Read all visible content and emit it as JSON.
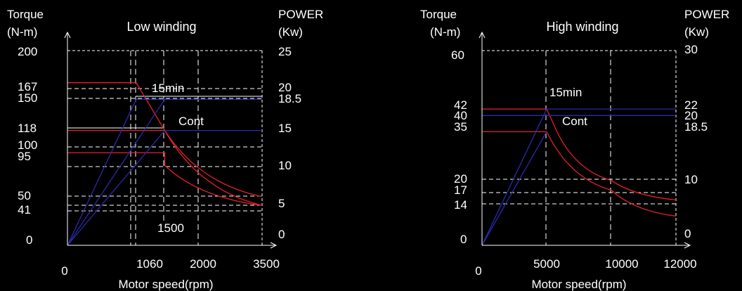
{
  "chart_data": [
    {
      "type": "line",
      "title": "Low winding",
      "xlabel": "Motor speed(rpm)",
      "ylabel_left": [
        "Torque",
        "(N-m)"
      ],
      "ylabel_right": [
        "POWER",
        "(Kw)"
      ],
      "x_tick_labels": [
        "0",
        "1060",
        "2000",
        "3500"
      ],
      "x_annotations": [
        "1500"
      ],
      "y_left_tick_labels": [
        "200",
        "167",
        "150",
        "118",
        "100",
        "95",
        "50",
        "41",
        "0"
      ],
      "y_right_tick_labels": [
        "25",
        "20",
        "18.5",
        "15",
        "10",
        "5",
        "0"
      ],
      "annotations": [
        "15min",
        "Cont"
      ],
      "ylim_left": [
        0,
        200
      ],
      "ylim_right": [
        0,
        25
      ],
      "xlim": [
        0,
        3000
      ],
      "series": [
        {
          "color": "#e8202a",
          "x": [
            0,
            1000,
            1060,
            1500,
            3000
          ],
          "y": [
            167,
            167,
            167,
            118,
            50
          ]
        },
        {
          "color": "#e8202a",
          "x": [
            0,
            1500,
            3000
          ],
          "y": [
            118,
            118,
            41
          ]
        },
        {
          "color": "#e8202a",
          "x": [
            0,
            1500,
            1500,
            3000
          ],
          "y": [
            95,
            95,
            82,
            41
          ]
        },
        {
          "color": "#2a2aa8",
          "x": [
            0,
            1060,
            3000
          ],
          "y": [
            0,
            150,
            150
          ]
        },
        {
          "color": "#2a2aa8",
          "x": [
            0,
            1500,
            3000
          ],
          "y": [
            0,
            118,
            118
          ]
        },
        {
          "color": "#2a2aa8",
          "x": [
            0,
            1500
          ],
          "y": [
            0,
            150
          ]
        }
      ]
    },
    {
      "type": "line",
      "title": "High winding",
      "xlabel": "Motor speed(rpm)",
      "ylabel_left": [
        "Torque",
        "(N-m)"
      ],
      "ylabel_right": [
        "POWER",
        "(Kw)"
      ],
      "x_tick_labels": [
        "0",
        "5000",
        "10000",
        "12000"
      ],
      "y_left_tick_labels": [
        "60",
        "42",
        "40",
        "35",
        "20",
        "17",
        "14",
        "0"
      ],
      "y_right_tick_labels": [
        "30",
        "22",
        "20",
        "18.5",
        "10",
        "0"
      ],
      "annotations": [
        "15min",
        "Cont"
      ],
      "ylim_left": [
        0,
        60
      ],
      "ylim_right": [
        0,
        30
      ],
      "xlim": [
        0,
        15000
      ],
      "series": [
        {
          "color": "#e8202a",
          "x": [
            0,
            5000,
            5800,
            10000,
            15000
          ],
          "y": [
            42,
            42,
            35,
            20,
            14
          ]
        },
        {
          "color": "#e8202a",
          "x": [
            0,
            5000,
            10000,
            15000
          ],
          "y": [
            35,
            35,
            17,
            9
          ]
        },
        {
          "color": "#2a2aa8",
          "x": [
            0,
            5000,
            15000
          ],
          "y": [
            0,
            42,
            42
          ]
        },
        {
          "color": "#2a2aa8",
          "x": [
            0,
            5000
          ],
          "y": [
            0,
            35
          ]
        },
        {
          "color": "#2a2aa8",
          "x": [
            0,
            15000
          ],
          "y": [
            40,
            40
          ]
        }
      ]
    }
  ]
}
